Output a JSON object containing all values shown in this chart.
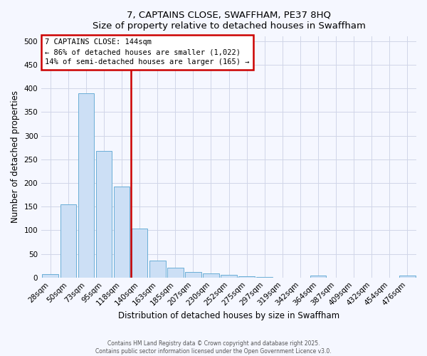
{
  "title_line1": "7, CAPTAINS CLOSE, SWAFFHAM, PE37 8HQ",
  "title_line2": "Size of property relative to detached houses in Swaffham",
  "xlabel": "Distribution of detached houses by size in Swaffham",
  "ylabel": "Number of detached properties",
  "categories": [
    "28sqm",
    "50sqm",
    "73sqm",
    "95sqm",
    "118sqm",
    "140sqm",
    "163sqm",
    "185sqm",
    "207sqm",
    "230sqm",
    "252sqm",
    "275sqm",
    "297sqm",
    "319sqm",
    "342sqm",
    "364sqm",
    "387sqm",
    "409sqm",
    "432sqm",
    "454sqm",
    "476sqm"
  ],
  "values": [
    7,
    155,
    390,
    267,
    193,
    103,
    35,
    21,
    11,
    8,
    5,
    3,
    1,
    0,
    0,
    4,
    0,
    0,
    0,
    0,
    4
  ],
  "bar_color": "#ccdff5",
  "bar_edge_color": "#6aaed6",
  "red_line_x": 5.5,
  "annotation_title": "7 CAPTAINS CLOSE: 144sqm",
  "annotation_line1": "← 86% of detached houses are smaller (1,022)",
  "annotation_line2": "14% of semi-detached houses are larger (165) →",
  "annotation_box_color": "#ffffff",
  "annotation_box_edge_color": "#cc0000",
  "ylim": [
    0,
    510
  ],
  "yticks": [
    0,
    50,
    100,
    150,
    200,
    250,
    300,
    350,
    400,
    450,
    500
  ],
  "footer_line1": "Contains HM Land Registry data © Crown copyright and database right 2025.",
  "footer_line2": "Contains public sector information licensed under the Open Government Licence v3.0.",
  "background_color": "#f5f7ff",
  "grid_color": "#d0d5e8",
  "title_fontsize": 9.5,
  "axis_label_fontsize": 8.5,
  "tick_fontsize": 7.5,
  "annotation_fontsize": 7.5
}
